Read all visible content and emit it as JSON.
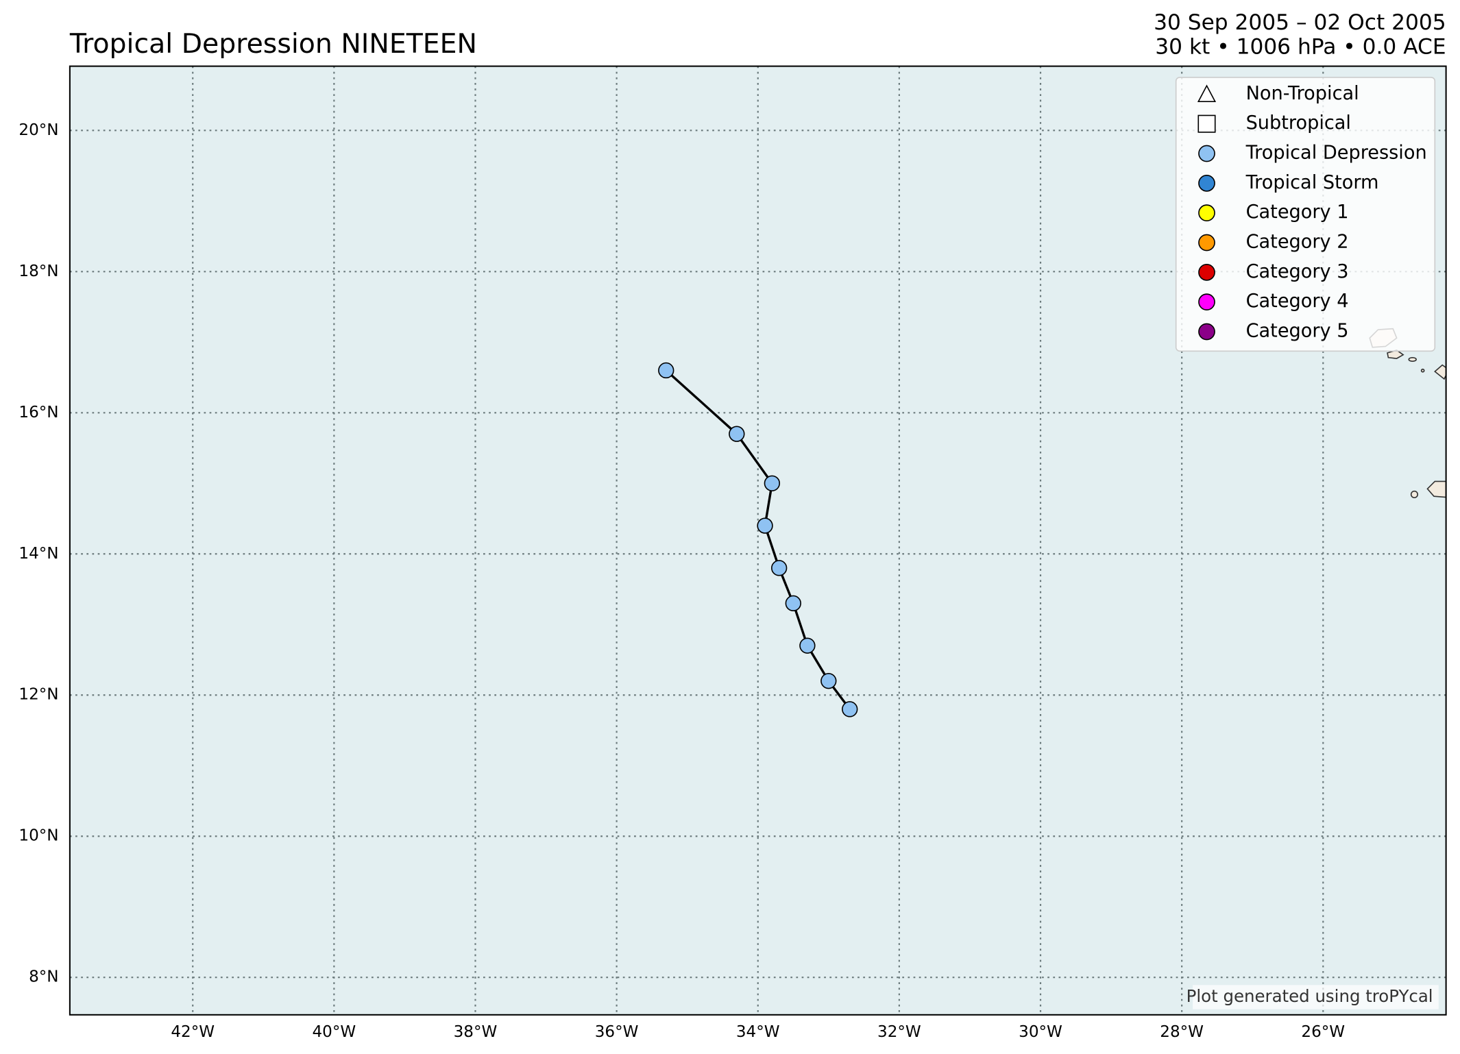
{
  "chart_data": {
    "type": "line",
    "title": "Tropical Depression NINETEEN",
    "subtitle": [
      "30 Sep 2005 – 02 Oct 2005",
      "30 kt • 1006 hPa • 0.0 ACE"
    ],
    "footnote": "Plot generated using troPYcal",
    "x": [
      -35.3,
      -34.3,
      -33.8,
      -33.9,
      -33.7,
      -33.5,
      -33.3,
      -33.0,
      -32.7
    ],
    "y": [
      16.6,
      15.7,
      15.0,
      14.4,
      13.8,
      13.3,
      12.7,
      12.2,
      11.8
    ],
    "color": "#8fc2f2",
    "xlim": [
      -43.74,
      -24.26
    ],
    "ylim": [
      7.47,
      20.91
    ],
    "xticks": [
      {
        "value": -42,
        "label": "42°W"
      },
      {
        "value": -40,
        "label": "40°W"
      },
      {
        "value": -38,
        "label": "38°W"
      },
      {
        "value": -36,
        "label": "36°W"
      },
      {
        "value": -34,
        "label": "34°W"
      },
      {
        "value": -32,
        "label": "32°W"
      },
      {
        "value": -30,
        "label": "30°W"
      },
      {
        "value": -28,
        "label": "28°W"
      },
      {
        "value": -26,
        "label": "26°W"
      }
    ],
    "yticks": [
      {
        "value": 8,
        "label": "8°N"
      },
      {
        "value": 10,
        "label": "10°N"
      },
      {
        "value": 12,
        "label": "12°N"
      },
      {
        "value": 14,
        "label": "14°N"
      },
      {
        "value": 16,
        "label": "16°N"
      },
      {
        "value": 18,
        "label": "18°N"
      },
      {
        "value": 20,
        "label": "20°N"
      }
    ],
    "grid": true,
    "legend_position": "upper right",
    "legend": [
      {
        "name": "Non-Tropical",
        "marker": "triangle",
        "color": "#ffffff"
      },
      {
        "name": "Subtropical",
        "marker": "square",
        "color": "#ffffff"
      },
      {
        "name": "Tropical Depression",
        "marker": "circle",
        "color": "#8fc2f2"
      },
      {
        "name": "Tropical Storm",
        "marker": "circle",
        "color": "#3185d3"
      },
      {
        "name": "Category 1",
        "marker": "circle",
        "color": "#ffff00"
      },
      {
        "name": "Category 2",
        "marker": "circle",
        "color": "#ff9900"
      },
      {
        "name": "Category 3",
        "marker": "circle",
        "color": "#dd0000"
      },
      {
        "name": "Category 4",
        "marker": "circle",
        "color": "#ff00fc"
      },
      {
        "name": "Category 5",
        "marker": "circle",
        "color": "#8b0088"
      }
    ]
  }
}
